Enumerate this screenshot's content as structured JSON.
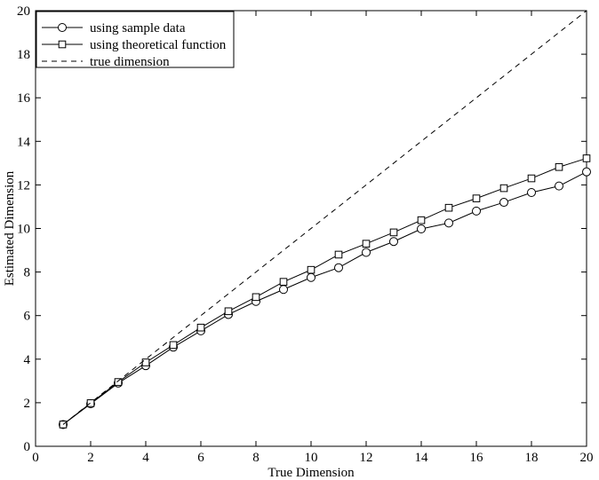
{
  "chart_data": {
    "type": "line",
    "xlabel": "True Dimension",
    "ylabel": "Estimated Dimension",
    "xlim": [
      0,
      20
    ],
    "ylim": [
      0,
      20
    ],
    "xticks": [
      0,
      2,
      4,
      6,
      8,
      10,
      12,
      14,
      16,
      18,
      20
    ],
    "yticks": [
      0,
      2,
      4,
      6,
      8,
      10,
      12,
      14,
      16,
      18,
      20
    ],
    "grid": false,
    "legend_position": "top-left",
    "series": [
      {
        "name": "using sample data",
        "marker": "circle",
        "line_style": "solid",
        "color": "#000000",
        "x": [
          1,
          2,
          3,
          4,
          5,
          6,
          7,
          8,
          9,
          10,
          11,
          12,
          13,
          14,
          15,
          16,
          17,
          18,
          19,
          20
        ],
        "y": [
          1.0,
          1.95,
          2.9,
          3.7,
          4.55,
          5.3,
          6.05,
          6.65,
          7.2,
          7.75,
          8.2,
          8.9,
          9.4,
          9.98,
          10.25,
          10.8,
          11.2,
          11.65,
          11.95,
          12.6
        ]
      },
      {
        "name": "using theoretical function",
        "marker": "square",
        "line_style": "solid",
        "color": "#000000",
        "x": [
          1,
          2,
          3,
          4,
          5,
          6,
          7,
          8,
          9,
          10,
          11,
          12,
          13,
          14,
          15,
          16,
          17,
          18,
          19,
          20
        ],
        "y": [
          1.0,
          1.98,
          2.95,
          3.85,
          4.65,
          5.45,
          6.2,
          6.85,
          7.55,
          8.1,
          8.8,
          9.3,
          9.82,
          10.38,
          10.95,
          11.38,
          11.85,
          12.3,
          12.82,
          13.22
        ]
      },
      {
        "name": "true dimension",
        "marker": "none",
        "line_style": "dashed",
        "color": "#000000",
        "x": [
          1,
          20
        ],
        "y": [
          1,
          20
        ]
      }
    ]
  }
}
